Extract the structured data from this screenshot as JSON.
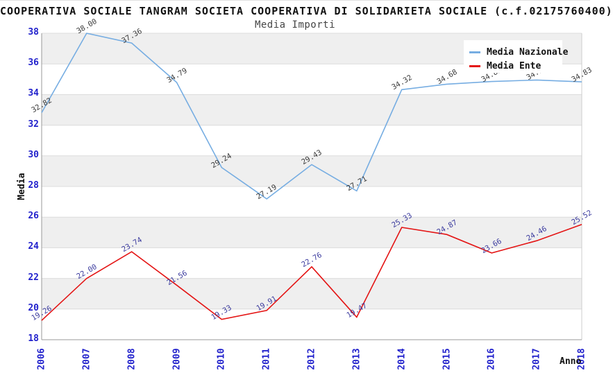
{
  "header": {
    "title": "COOPERATIVA SOCIALE TANGRAM SOCIETA COOPERATIVA DI SOLIDARIETA SOCIALE (c.f.02175760400)",
    "subtitle": "Media Importi"
  },
  "axes": {
    "y_title": "Media",
    "x_title": "Anno",
    "y_ticks": [
      18,
      20,
      22,
      24,
      26,
      28,
      30,
      32,
      34,
      36,
      38
    ],
    "tick_label_color": "#2222cc"
  },
  "chart_data": {
    "type": "line",
    "title": "Media Importi",
    "xlabel": "Anno",
    "ylabel": "Media",
    "x": [
      2006,
      2007,
      2008,
      2009,
      2010,
      2011,
      2012,
      2013,
      2014,
      2015,
      2016,
      2017,
      2018
    ],
    "ylim": [
      18,
      38
    ],
    "grid": "alternating-horizontal-bands",
    "legend_position": "top-right-inside",
    "series": [
      {
        "name": "Media Nazionale",
        "color": "#76ade2",
        "label_color": "#3a3a3a",
        "values": [
          32.82,
          38.0,
          37.36,
          34.79,
          29.24,
          27.19,
          29.43,
          27.71,
          34.32,
          34.68,
          34.85,
          34.95,
          34.83
        ]
      },
      {
        "name": "Media Ente",
        "color": "#e41414",
        "label_color": "#3b3b9e",
        "values": [
          19.26,
          22.0,
          23.74,
          21.56,
          19.33,
          19.91,
          22.76,
          19.47,
          25.33,
          24.87,
          23.66,
          24.46,
          25.52
        ]
      }
    ]
  },
  "style": {
    "band_color": "#efefef",
    "grid_color": "#dcdcdc",
    "axis_color": "#999999",
    "border_color": "#cccccc"
  }
}
